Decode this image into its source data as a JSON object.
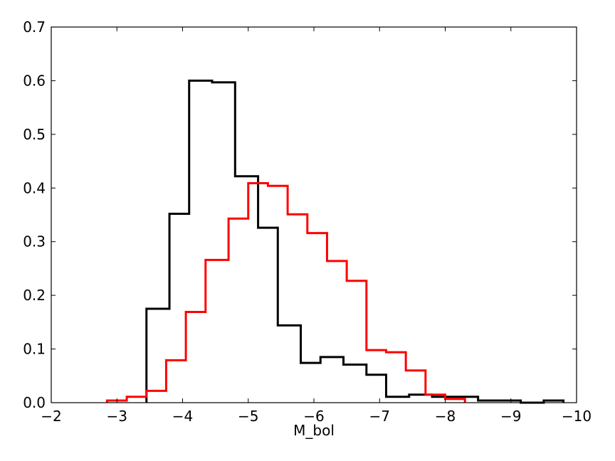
{
  "chart_data": {
    "type": "histogram-step",
    "title": "",
    "xlabel": "M_bol",
    "ylabel": "",
    "xlim": [
      -2,
      -10
    ],
    "ylim": [
      0,
      0.7
    ],
    "x_inverted": true,
    "grid": false,
    "xticks": [
      -2,
      -3,
      -4,
      -5,
      -6,
      -7,
      -8,
      -9,
      -10
    ],
    "xtick_labels": [
      "−2",
      "−3",
      "−4",
      "−5",
      "−6",
      "−7",
      "−8",
      "−9",
      "−10"
    ],
    "yticks": [
      0.0,
      0.1,
      0.2,
      0.3,
      0.4,
      0.5,
      0.6,
      0.7
    ],
    "ytick_labels": [
      "0.0",
      "0.1",
      "0.2",
      "0.3",
      "0.4",
      "0.5",
      "0.6",
      "0.7"
    ],
    "series": [
      {
        "color": "#000000",
        "bin_edges": [
          -3.45,
          -3.8,
          -4.1,
          -4.45,
          -4.8,
          -5.15,
          -5.45,
          -5.8,
          -6.1,
          -6.45,
          -6.8,
          -7.1,
          -7.45,
          -7.8,
          -8.15,
          -8.5,
          -8.8,
          -9.15,
          -9.5,
          -9.8
        ],
        "values": [
          0.175,
          0.352,
          0.6,
          0.597,
          0.422,
          0.326,
          0.144,
          0.074,
          0.085,
          0.071,
          0.052,
          0.011,
          0.015,
          0.011,
          0.011,
          0.004,
          0.004,
          0.0,
          0.004
        ]
      },
      {
        "color": "#ff0000",
        "bin_edges": [
          -2.85,
          -3.15,
          -3.45,
          -3.75,
          -4.05,
          -4.35,
          -4.7,
          -5.0,
          -5.3,
          -5.6,
          -5.9,
          -6.2,
          -6.5,
          -6.8,
          -7.1,
          -7.4,
          -7.7,
          -8.0,
          -8.3
        ],
        "values": [
          0.004,
          0.011,
          0.022,
          0.079,
          0.169,
          0.266,
          0.343,
          0.409,
          0.404,
          0.351,
          0.316,
          0.264,
          0.227,
          0.098,
          0.094,
          0.06,
          0.015,
          0.007
        ]
      }
    ]
  }
}
